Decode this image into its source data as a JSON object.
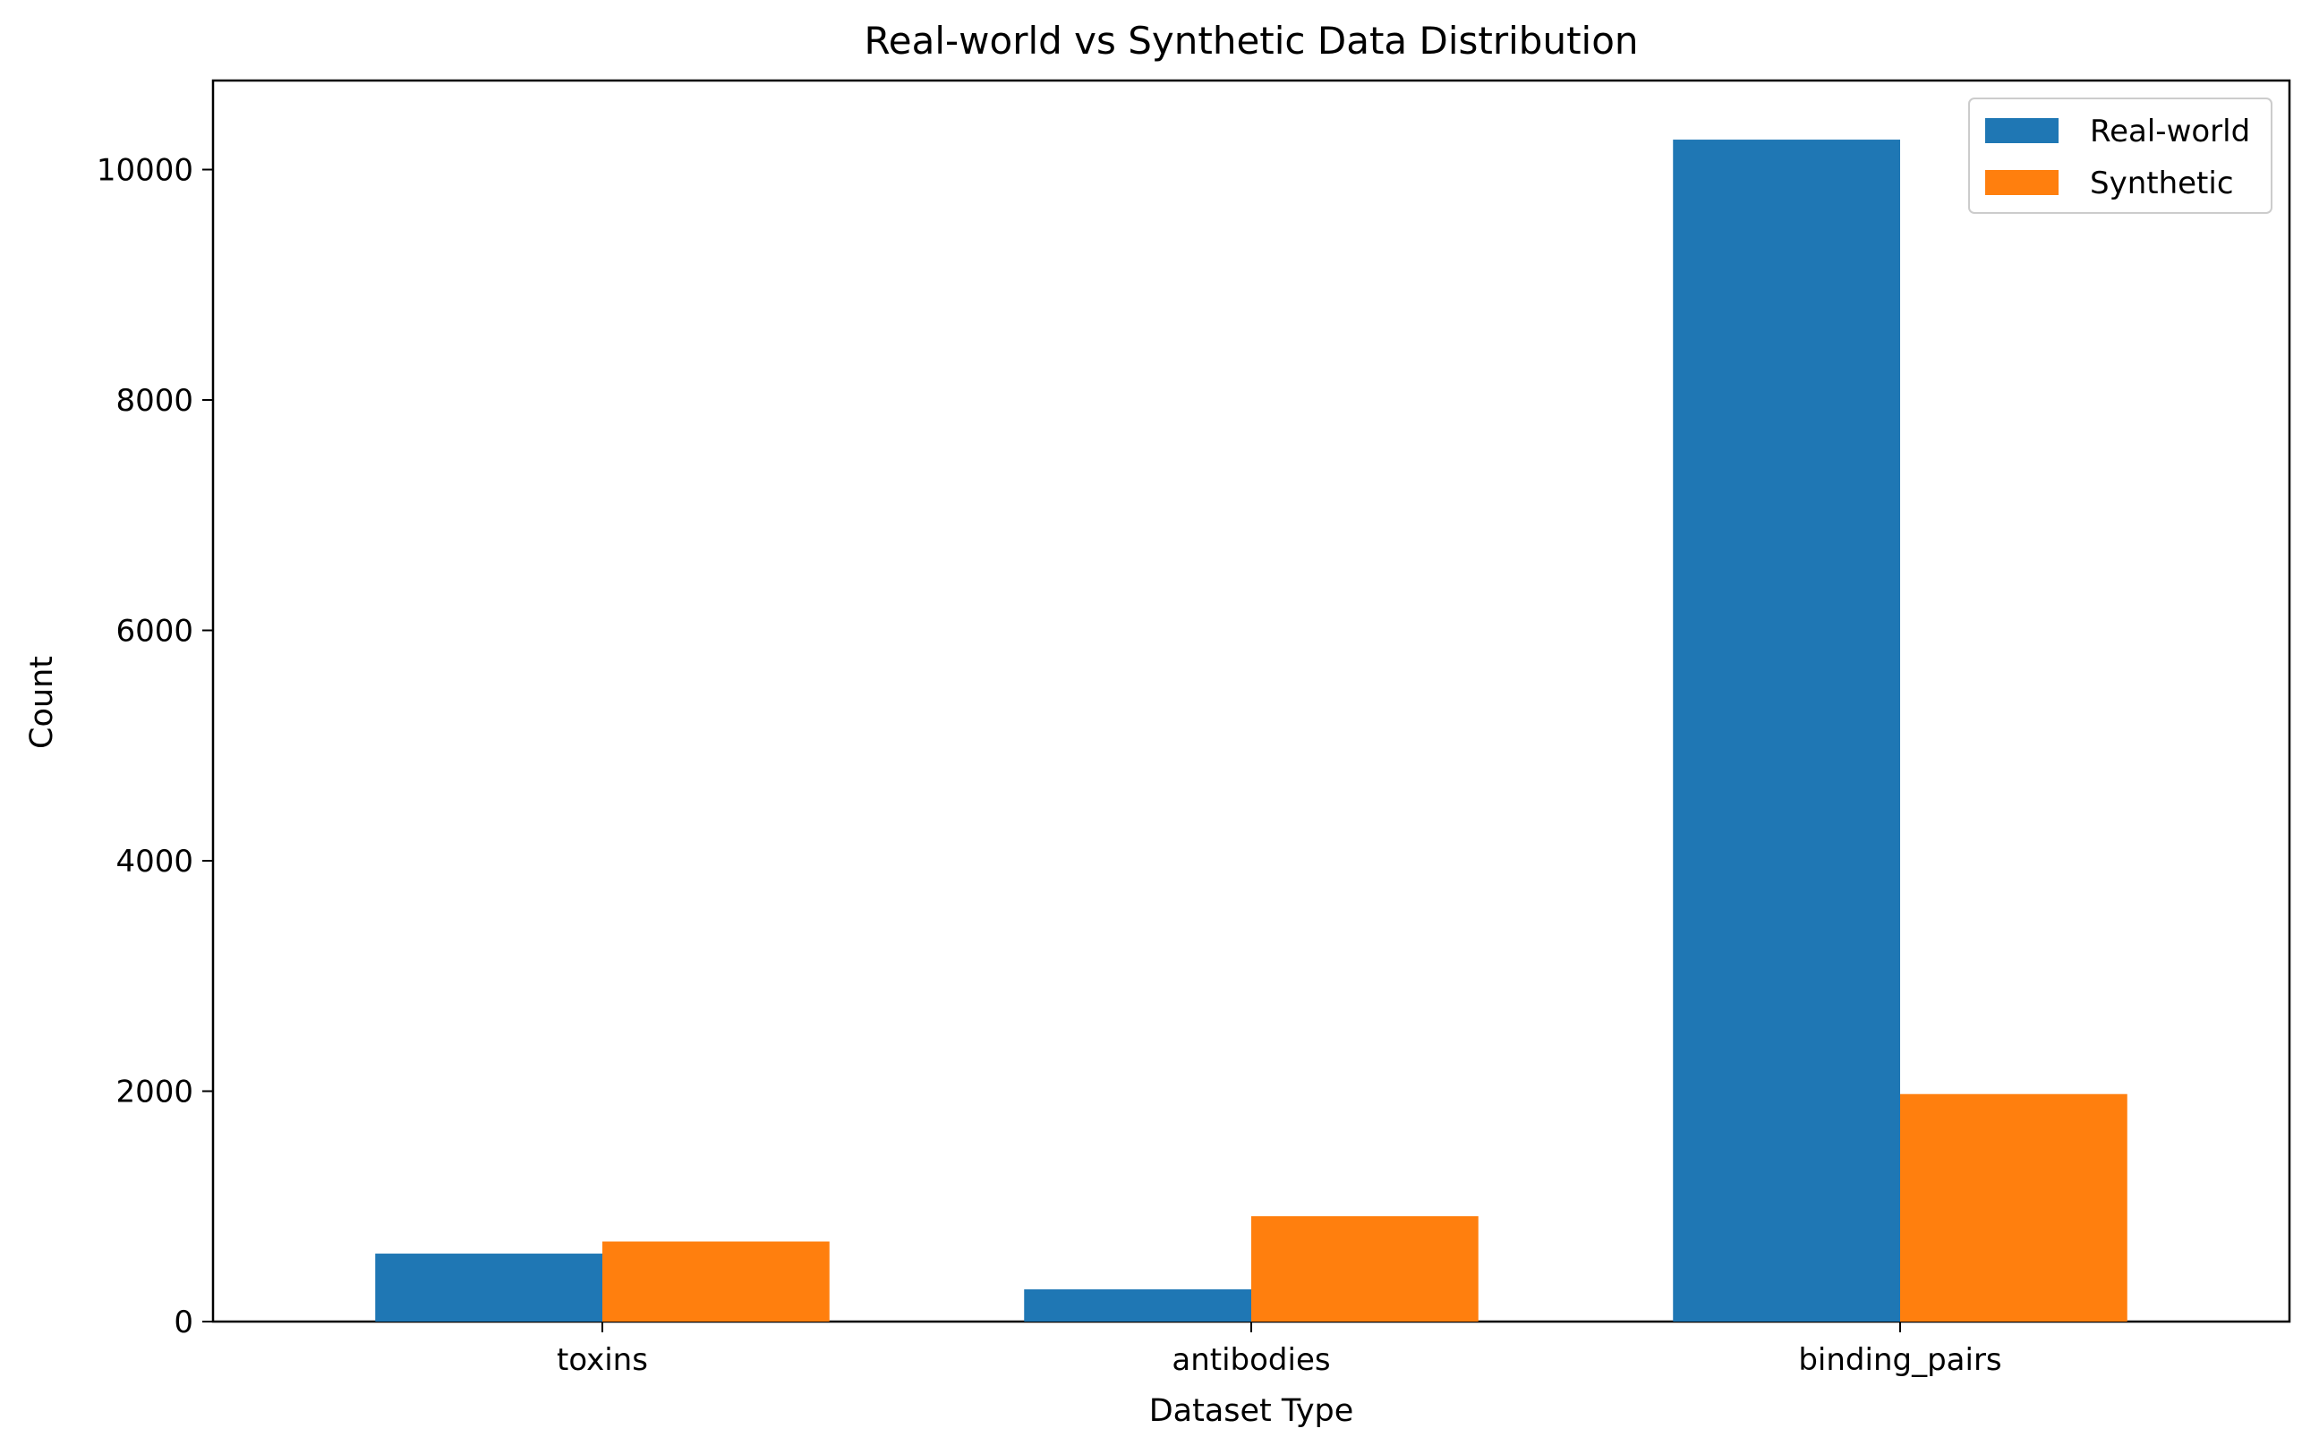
{
  "chart_data": {
    "type": "bar",
    "title": "Real-world vs Synthetic Data Distribution",
    "xlabel": "Dataset Type",
    "ylabel": "Count",
    "categories": [
      "toxins",
      "antibodies",
      "binding_pairs"
    ],
    "series": [
      {
        "name": "Real-world",
        "color": "#1f77b4",
        "values": [
          590,
          280,
          10260
        ]
      },
      {
        "name": "Synthetic",
        "color": "#ff7f0e",
        "values": [
          695,
          915,
          1975
        ]
      }
    ],
    "ylim": [
      0,
      10773
    ],
    "yticks": [
      0,
      2000,
      4000,
      6000,
      8000,
      10000
    ],
    "grid": false,
    "legend_position": "top-right"
  }
}
